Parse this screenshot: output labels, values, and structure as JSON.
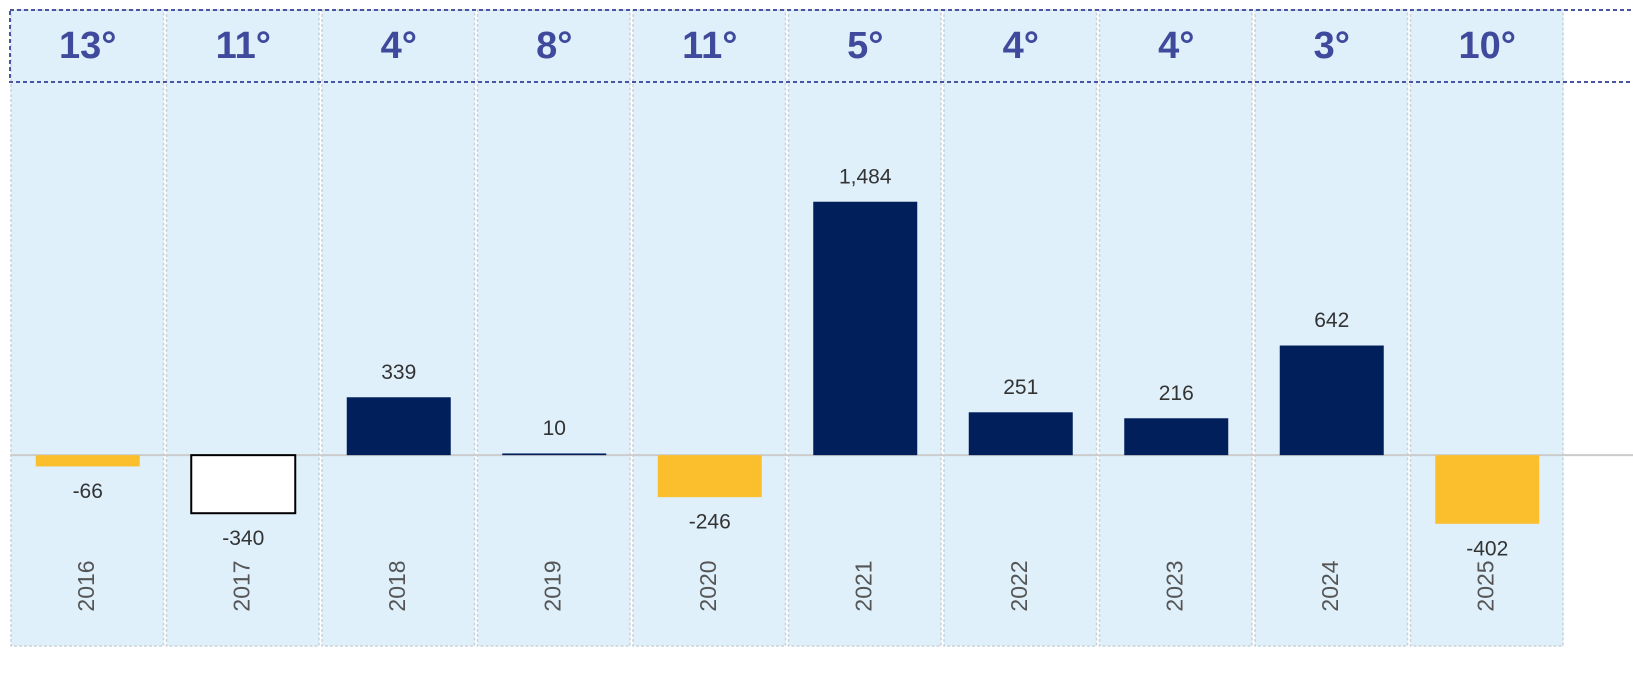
{
  "chart_data": {
    "type": "bar",
    "categories": [
      "2016",
      "2017",
      "2018",
      "2019",
      "2020",
      "2021",
      "2022",
      "2023",
      "2024",
      "2025"
    ],
    "values": [
      -66,
      -340,
      339,
      10,
      -246,
      1484,
      251,
      216,
      642,
      -402
    ],
    "value_labels": [
      "-66",
      "-340",
      "339",
      "10",
      "-246",
      "1,484",
      "251",
      "216",
      "642",
      "-402"
    ],
    "ranks": [
      "13°",
      "11°",
      "4°",
      "8°",
      "11°",
      "5°",
      "4°",
      "4°",
      "3°",
      "10°"
    ],
    "colors": [
      "#fbbf2e",
      "#ffffff",
      "#001f5b",
      "#001f5b",
      "#fbbf2e",
      "#001f5b",
      "#001f5b",
      "#001f5b",
      "#001f5b",
      "#fbbf2e"
    ],
    "edgecolors": [
      null,
      "#000000",
      null,
      null,
      null,
      null,
      null,
      null,
      null,
      null
    ],
    "ylim": [
      -1100,
      2150
    ]
  }
}
